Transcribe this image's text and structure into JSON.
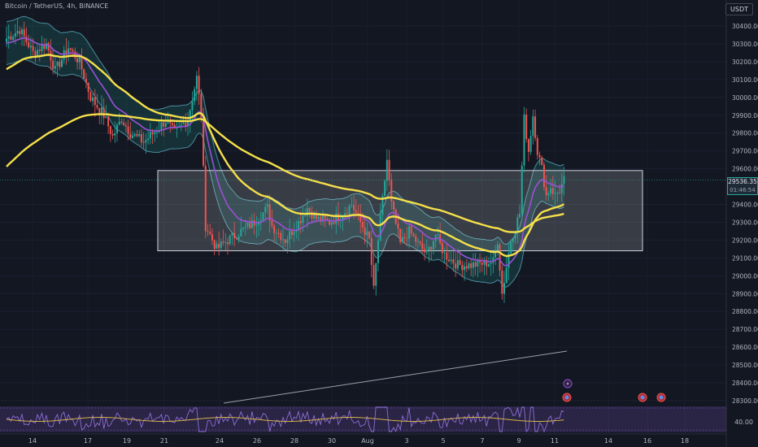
{
  "header": {
    "symbol_text": "Bitcoin / TetherUS, 4h, BINANCE",
    "currency_button": "USDT"
  },
  "last_price": {
    "value": "29536.35",
    "countdown": "01:46:54"
  },
  "indicator": {
    "level_label": "40.00"
  },
  "colors": {
    "background": "#131722",
    "up": "#26a69a",
    "down": "#ef5350",
    "ema": "#f5e04a",
    "band": "#5fb8c9",
    "purple": "#9c4fd6",
    "lavender": "#b39ddb",
    "box": "#ffffff"
  },
  "chart_data": {
    "type": "candlestick",
    "y_axis": {
      "labels": [
        "30400.00",
        "30300.00",
        "30200.00",
        "30100.00",
        "30000.00",
        "29900.00",
        "29800.00",
        "29700.00",
        "29600.00",
        "29400.00",
        "29300.00",
        "29200.00",
        "29100.00",
        "29000.00",
        "28900.00",
        "28800.00",
        "28700.00",
        "28600.00",
        "28500.00",
        "28400.00",
        "28300.00"
      ],
      "range": [
        28250,
        30480
      ]
    },
    "x_axis": {
      "labels": [
        "14",
        "17",
        "19",
        "21",
        "24",
        "26",
        "28",
        "30",
        "Aug",
        "3",
        "5",
        "7",
        "9",
        "11",
        "14",
        "16",
        "18"
      ]
    },
    "range_box": {
      "from": "Jul 21",
      "to": "Aug 15",
      "high": 29590,
      "low": 29140
    },
    "last_price": 29536.35,
    "close_path": [
      [
        0,
        30330
      ],
      [
        6,
        30380
      ],
      [
        12,
        30250
      ],
      [
        18,
        30300
      ],
      [
        22,
        30150
      ],
      [
        28,
        30280
      ],
      [
        33,
        30200
      ],
      [
        38,
        30000
      ],
      [
        44,
        29900
      ],
      [
        48,
        29780
      ],
      [
        52,
        29880
      ],
      [
        56,
        29800
      ],
      [
        62,
        29750
      ],
      [
        68,
        29820
      ],
      [
        72,
        29870
      ],
      [
        76,
        29800
      ],
      [
        82,
        29880
      ],
      [
        86,
        30110
      ],
      [
        88,
        29900
      ],
      [
        90,
        29280
      ],
      [
        95,
        29150
      ],
      [
        100,
        29200
      ],
      [
        106,
        29250
      ],
      [
        112,
        29300
      ],
      [
        118,
        29380
      ],
      [
        120,
        29280
      ],
      [
        126,
        29200
      ],
      [
        132,
        29300
      ],
      [
        136,
        29380
      ],
      [
        140,
        29320
      ],
      [
        146,
        29300
      ],
      [
        152,
        29350
      ],
      [
        156,
        29400
      ],
      [
        160,
        29300
      ],
      [
        164,
        29200
      ],
      [
        166,
        28920
      ],
      [
        168,
        29200
      ],
      [
        172,
        29650
      ],
      [
        174,
        29400
      ],
      [
        178,
        29180
      ],
      [
        182,
        29250
      ],
      [
        186,
        29180
      ],
      [
        190,
        29120
      ],
      [
        194,
        29230
      ],
      [
        198,
        29120
      ],
      [
        204,
        29060
      ],
      [
        210,
        29060
      ],
      [
        216,
        29070
      ],
      [
        220,
        29080
      ],
      [
        222,
        29200
      ],
      [
        224,
        28900
      ],
      [
        228,
        29200
      ],
      [
        232,
        29350
      ],
      [
        234,
        29880
      ],
      [
        236,
        29700
      ],
      [
        238,
        29900
      ],
      [
        240,
        29700
      ],
      [
        242,
        29600
      ],
      [
        244,
        29450
      ],
      [
        246,
        29500
      ],
      [
        248,
        29450
      ],
      [
        250,
        29480
      ],
      [
        252,
        29536
      ]
    ]
  },
  "markers": [
    {
      "icon": "lightning-icon"
    },
    {
      "icon": "earnings-icon"
    },
    {
      "icon": "earnings-icon"
    },
    {
      "icon": "earnings-icon"
    }
  ]
}
